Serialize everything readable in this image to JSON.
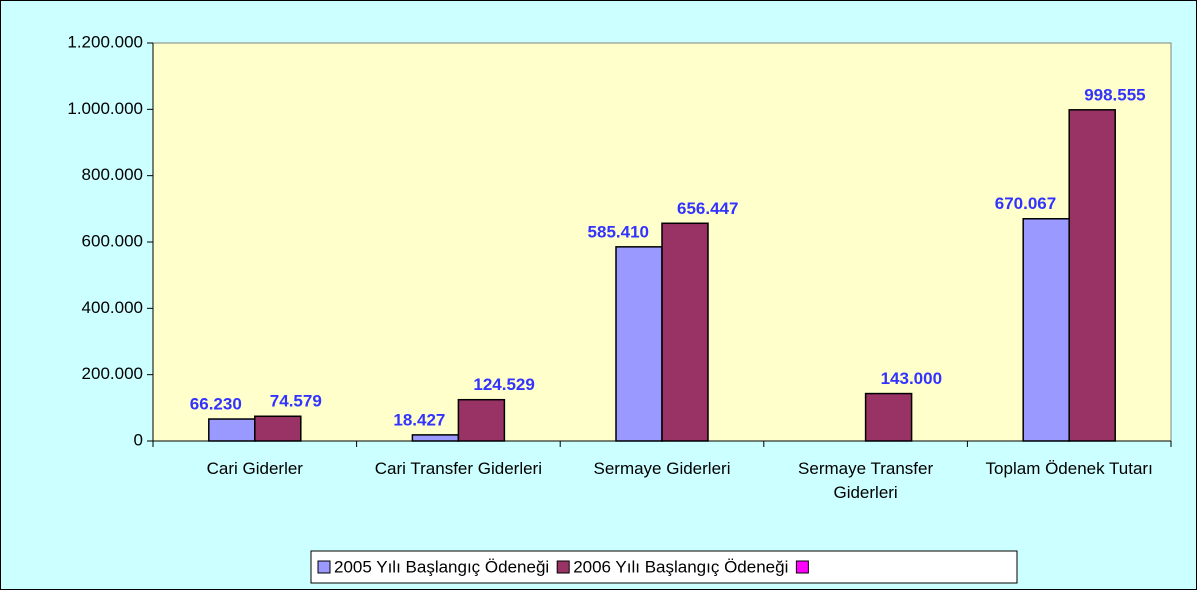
{
  "chart_data": {
    "type": "bar",
    "categories": [
      "Cari Giderler",
      "Cari Transfer Giderleri",
      "Sermaye Giderleri",
      "Sermaye Transfer Giderleri",
      "Toplam Ödenek Tutarı"
    ],
    "series": [
      {
        "name": "2005 Yılı Başlangıç Ödeneği",
        "color": "#9999ff",
        "values": [
          66230,
          18427,
          585410,
          null,
          670067
        ],
        "value_labels": [
          "66.230",
          "18.427",
          "585.410",
          null,
          "670.067"
        ]
      },
      {
        "name": "2006 Yılı Başlangıç Ödeneği",
        "color": "#993366",
        "values": [
          74579,
          124529,
          656447,
          143000,
          998555
        ],
        "value_labels": [
          "74.579",
          "124.529",
          "656.447",
          "143.000",
          "998.555"
        ]
      },
      {
        "name": null,
        "color": "#ff00ff",
        "values": [
          null,
          null,
          null,
          null,
          null
        ]
      }
    ],
    "ylim": [
      0,
      1200000
    ],
    "yticks": [
      0,
      {
        "value": 200000,
        "label": "200.000"
      },
      {
        "value": 400000,
        "label": "400.000"
      },
      {
        "value": 600000,
        "label": "600.000"
      },
      {
        "value": 800000,
        "label": "800.000"
      },
      {
        "value": 1000000,
        "label": "1.000.000"
      },
      {
        "value": 1200000,
        "label": "1.200.000"
      }
    ],
    "legend": "bottom"
  }
}
